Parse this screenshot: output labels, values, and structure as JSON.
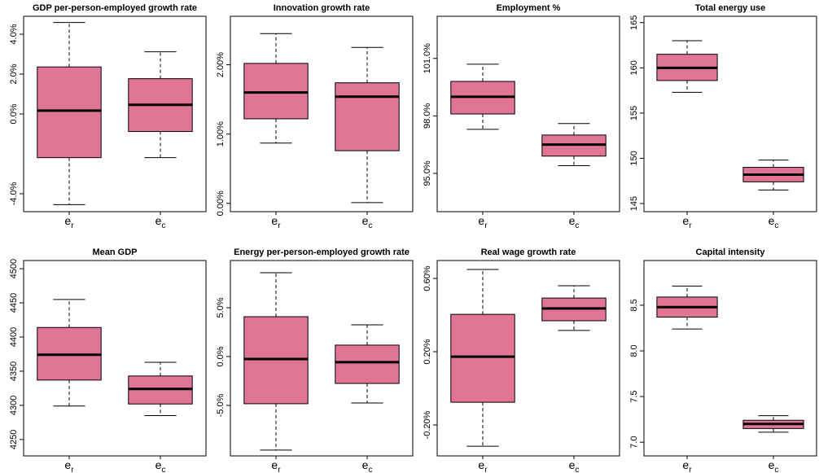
{
  "chart_data": [
    {
      "type": "box",
      "title": "GDP per-person-employed growth rate",
      "categories": [
        [
          "e",
          "r"
        ],
        [
          "e",
          "c"
        ]
      ],
      "color": "#e07595",
      "ylim": [
        -4.9,
        4.9
      ],
      "yticks": [
        {
          "value": -4,
          "label": "-4.0%"
        },
        {
          "value": 0,
          "label": "0.0%"
        },
        {
          "value": 2,
          "label": "2.0%"
        },
        {
          "value": 4,
          "label": "4.0%"
        }
      ],
      "stats": [
        {
          "min": -4.55,
          "q1": -2.19,
          "median": 0.17,
          "q3": 2.36,
          "max": 4.59
        },
        {
          "min": -2.19,
          "q1": -0.88,
          "median": 0.46,
          "q3": 1.77,
          "max": 3.12
        }
      ]
    },
    {
      "type": "box",
      "title": "Innovation growth rate",
      "categories": [
        [
          "e",
          "r"
        ],
        [
          "e",
          "c"
        ]
      ],
      "color": "#e07595",
      "ylim": [
        -0.12,
        2.7
      ],
      "yticks": [
        {
          "value": 0,
          "label": "0.00%"
        },
        {
          "value": 1,
          "label": "1.00%"
        },
        {
          "value": 2,
          "label": "2.00%"
        }
      ],
      "stats": [
        {
          "min": 0.87,
          "q1": 1.22,
          "median": 1.6,
          "q3": 2.02,
          "max": 2.45
        },
        {
          "min": 0.01,
          "q1": 0.76,
          "median": 1.54,
          "q3": 1.74,
          "max": 2.25
        }
      ]
    },
    {
      "type": "box",
      "title": "Employment %",
      "categories": [
        [
          "e",
          "r"
        ],
        [
          "e",
          "c"
        ]
      ],
      "color": "#e07595",
      "ylim": [
        93.0,
        103.2
      ],
      "yticks": [
        {
          "value": 95,
          "label": "95.0%"
        },
        {
          "value": 98,
          "label": "98.0%"
        },
        {
          "value": 101,
          "label": "101.0%"
        }
      ],
      "stats": [
        {
          "min": 97.3,
          "q1": 98.1,
          "median": 99.0,
          "q3": 99.8,
          "max": 100.7
        },
        {
          "min": 95.4,
          "q1": 95.9,
          "median": 96.5,
          "q3": 97.0,
          "max": 97.6
        }
      ]
    },
    {
      "type": "box",
      "title": "Total energy use",
      "categories": [
        [
          "e",
          "r"
        ],
        [
          "e",
          "c"
        ]
      ],
      "color": "#e07595",
      "ylim": [
        144.1,
        165.7
      ],
      "yticks": [
        145,
        150,
        155,
        160,
        165
      ],
      "stats": [
        {
          "min": 157.3,
          "q1": 158.6,
          "median": 160.0,
          "q3": 161.5,
          "max": 163.0
        },
        {
          "min": 146.5,
          "q1": 147.4,
          "median": 148.2,
          "q3": 149.0,
          "max": 149.8
        }
      ]
    },
    {
      "type": "box",
      "title": "Mean GDP",
      "categories": [
        [
          "e",
          "r"
        ],
        [
          "e",
          "c"
        ]
      ],
      "color": "#e07595",
      "ylim": [
        4226,
        4512
      ],
      "yticks": [
        4250,
        4300,
        4350,
        4400,
        4450,
        4500
      ],
      "stats": [
        {
          "min": 4299,
          "q1": 4337,
          "median": 4374,
          "q3": 4414,
          "max": 4455
        },
        {
          "min": 4285,
          "q1": 4302,
          "median": 4324,
          "q3": 4343,
          "max": 4363
        }
      ]
    },
    {
      "type": "box",
      "title": "Energy per-person-employed growth rate",
      "categories": [
        [
          "e",
          "r"
        ],
        [
          "e",
          "c"
        ]
      ],
      "color": "#e07595",
      "ylim": [
        -10.17,
        9.83
      ],
      "yticks": [
        {
          "value": -5,
          "label": "-5.0%"
        },
        {
          "value": 0,
          "label": "0.0%"
        },
        {
          "value": 5,
          "label": "5.0%"
        }
      ],
      "stats": [
        {
          "min": -9.58,
          "q1": -4.83,
          "median": -0.25,
          "q3": 4.08,
          "max": 8.58
        },
        {
          "min": -4.75,
          "q1": -2.75,
          "median": -0.58,
          "q3": 1.17,
          "max": 3.25
        }
      ]
    },
    {
      "type": "box",
      "title": "Real wage growth rate",
      "categories": [
        [
          "e",
          "r"
        ],
        [
          "e",
          "c"
        ]
      ],
      "color": "#e07595",
      "ylim": [
        -0.369,
        0.698
      ],
      "yticks": [
        {
          "value": -0.2,
          "label": "-0.20%"
        },
        {
          "value": 0.2,
          "label": "0.20%"
        },
        {
          "value": 0.6,
          "label": "0.60%"
        }
      ],
      "stats": [
        {
          "min": -0.316,
          "q1": -0.076,
          "median": 0.173,
          "q3": 0.404,
          "max": 0.649
        },
        {
          "min": 0.316,
          "q1": 0.369,
          "median": 0.436,
          "q3": 0.493,
          "max": 0.56
        }
      ]
    },
    {
      "type": "box",
      "title": "Capital intensity",
      "categories": [
        [
          "e",
          "r"
        ],
        [
          "e",
          "c"
        ]
      ],
      "color": "#e07595",
      "ylim": [
        6.85,
        8.99
      ],
      "yticks": [
        {
          "value": 7,
          "label": "7.0"
        },
        7.5,
        {
          "value": 8,
          "label": "8.0"
        },
        8.5
      ],
      "stats": [
        {
          "min": 8.24,
          "q1": 8.37,
          "median": 8.48,
          "q3": 8.59,
          "max": 8.71
        },
        {
          "min": 7.11,
          "q1": 7.15,
          "median": 7.2,
          "q3": 7.24,
          "max": 7.29
        }
      ]
    }
  ]
}
